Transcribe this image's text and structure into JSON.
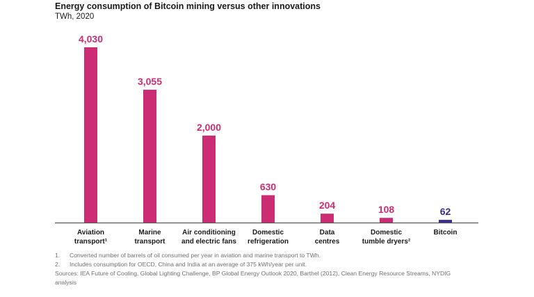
{
  "title": "Energy consumption of Bitcoin mining versus other innovations",
  "subtitle": "TWh, 2020",
  "chart_data": {
    "type": "bar",
    "unit": "TWh",
    "categories": [
      [
        "Aviation",
        "transport¹"
      ],
      [
        "Marine",
        "transport"
      ],
      [
        "Air conditioning",
        "and electric fans"
      ],
      [
        "Domestic",
        "refrigeration"
      ],
      [
        "Data",
        "centres"
      ],
      [
        "Domestic",
        "tumble dryers²"
      ],
      [
        "Bitcoin"
      ]
    ],
    "values": [
      4030,
      3055,
      2000,
      630,
      204,
      108,
      62
    ],
    "value_labels": [
      "4,030",
      "3,055",
      "2,000",
      "630",
      "204",
      "108",
      "62"
    ],
    "ylim": [
      0,
      4030
    ],
    "grid": false,
    "colors": {
      "default": "#cc2c73",
      "highlight": "#3b2a8f",
      "highlight_category": "Bitcoin",
      "axis": "#555555"
    }
  },
  "footnotes": [
    {
      "num": "1.",
      "text": "Converted number of barrels of oil consumed per year in aviation and marine transport to TWh."
    },
    {
      "num": "2.",
      "text": "Includes consumption for OECD, China and India at an average of 375 kWh/year per unit."
    }
  ],
  "sources": "Sources: IEA Future of Cooling, Global Lighting Challenge, BP Global Energy Outlook 2020, Barthel (2012), Clean Energy Resource Streams, NYDIG analysis"
}
